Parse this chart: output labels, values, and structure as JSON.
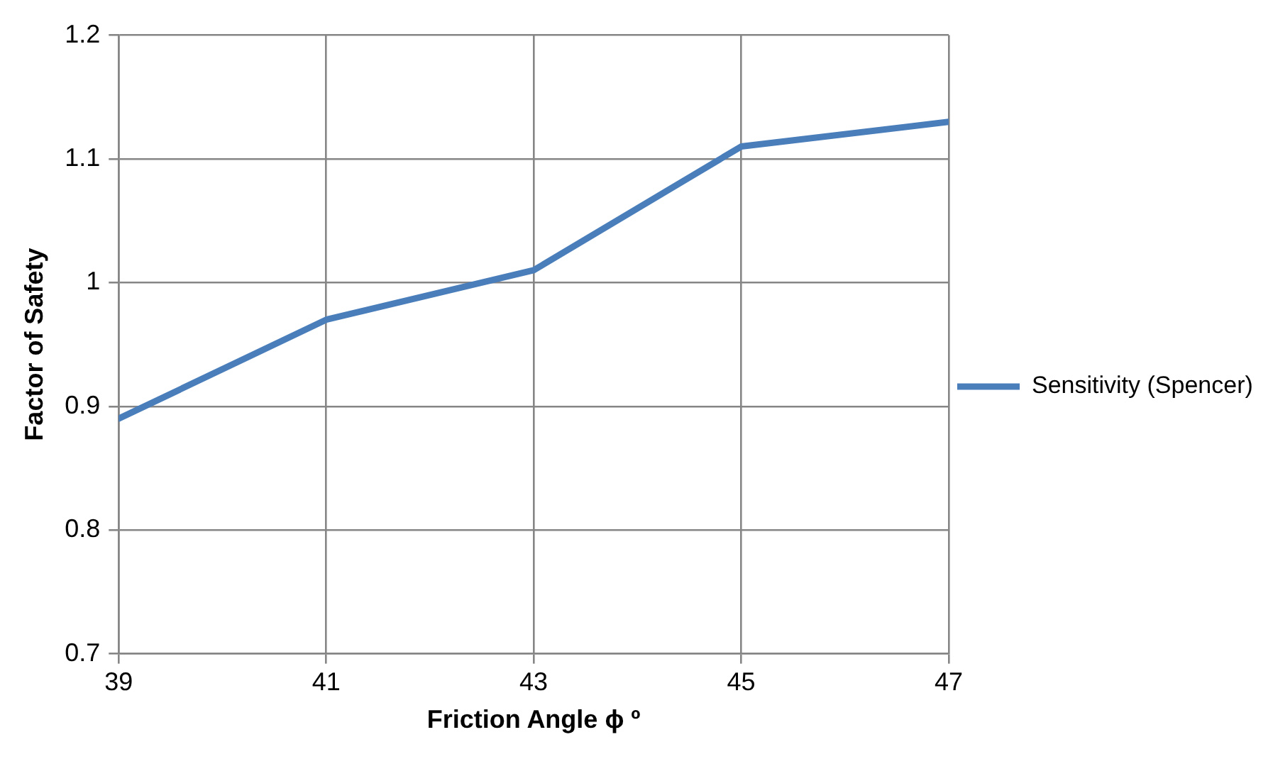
{
  "chart_data": {
    "type": "line",
    "xlabel": "Friction Angle ϕ º",
    "ylabel": "Factor of Safety",
    "x": [
      39,
      41,
      43,
      45,
      47
    ],
    "series": [
      {
        "name": "Sensitivity (Spencer)",
        "color": "#4a7ebb",
        "values": [
          0.89,
          0.97,
          1.01,
          1.11,
          1.13
        ]
      }
    ],
    "xlim": [
      39,
      47
    ],
    "xticks": [
      39,
      41,
      43,
      45,
      47
    ],
    "ylim": [
      0.7,
      1.2
    ],
    "yticks": [
      0.7,
      0.8,
      0.9,
      1,
      1.1,
      1.2
    ],
    "grid": true,
    "legend": "right",
    "marker": "none",
    "line_style": "solid"
  }
}
